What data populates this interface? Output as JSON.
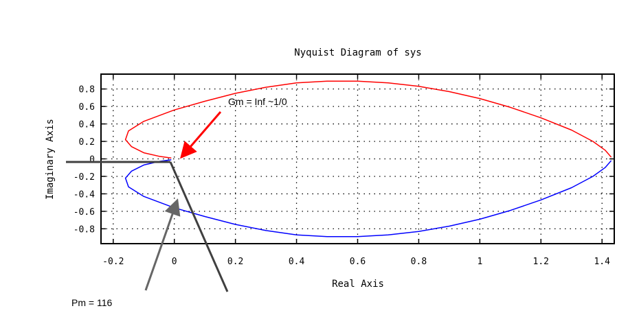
{
  "chart_data": {
    "type": "line",
    "title": "Nyquist Diagram of sys",
    "xlabel": "Real Axis",
    "ylabel": "Imaginary Axis",
    "xlim": [
      -0.24,
      1.44
    ],
    "ylim": [
      -0.97,
      0.97
    ],
    "grid": true,
    "x_ticks": [
      {
        "value": -0.2,
        "label": "-0.2"
      },
      {
        "value": 0,
        "label": "0"
      },
      {
        "value": 0.2,
        "label": "0.2"
      },
      {
        "value": 0.4,
        "label": "0.4"
      },
      {
        "value": 0.6,
        "label": "0.6"
      },
      {
        "value": 0.8,
        "label": "0.8"
      },
      {
        "value": 1.0,
        "label": "1"
      },
      {
        "value": 1.2,
        "label": "1.2"
      },
      {
        "value": 1.4,
        "label": "1.4"
      }
    ],
    "y_ticks": [
      {
        "value": 0.8,
        "label": "0.8"
      },
      {
        "value": 0.6,
        "label": "0.6"
      },
      {
        "value": 0.4,
        "label": "0.4"
      },
      {
        "value": 0.2,
        "label": "0.2"
      },
      {
        "value": 0,
        "label": "0"
      },
      {
        "value": -0.2,
        "label": "-0.2"
      },
      {
        "value": -0.4,
        "label": "-0.4"
      },
      {
        "value": -0.6,
        "label": "-0.6"
      },
      {
        "value": -0.8,
        "label": "-0.8"
      }
    ],
    "series": [
      {
        "color": "#ff0000",
        "points": [
          [
            -0.01,
            0.01
          ],
          [
            -0.05,
            0.03
          ],
          [
            -0.1,
            0.07
          ],
          [
            -0.14,
            0.14
          ],
          [
            -0.16,
            0.22
          ],
          [
            -0.15,
            0.32
          ],
          [
            -0.1,
            0.43
          ],
          [
            0.0,
            0.56
          ],
          [
            0.1,
            0.66
          ],
          [
            0.2,
            0.75
          ],
          [
            0.3,
            0.82
          ],
          [
            0.4,
            0.87
          ],
          [
            0.5,
            0.89
          ],
          [
            0.6,
            0.89
          ],
          [
            0.7,
            0.87
          ],
          [
            0.8,
            0.83
          ],
          [
            0.9,
            0.77
          ],
          [
            1.0,
            0.69
          ],
          [
            1.1,
            0.59
          ],
          [
            1.2,
            0.47
          ],
          [
            1.3,
            0.33
          ],
          [
            1.37,
            0.2
          ],
          [
            1.41,
            0.1
          ],
          [
            1.43,
            0.02
          ]
        ]
      },
      {
        "color": "#0000ff",
        "points": [
          [
            -0.01,
            -0.01
          ],
          [
            -0.05,
            -0.03
          ],
          [
            -0.1,
            -0.07
          ],
          [
            -0.14,
            -0.14
          ],
          [
            -0.16,
            -0.22
          ],
          [
            -0.15,
            -0.32
          ],
          [
            -0.1,
            -0.43
          ],
          [
            0.0,
            -0.56
          ],
          [
            0.1,
            -0.66
          ],
          [
            0.2,
            -0.75
          ],
          [
            0.3,
            -0.82
          ],
          [
            0.4,
            -0.87
          ],
          [
            0.5,
            -0.89
          ],
          [
            0.6,
            -0.89
          ],
          [
            0.7,
            -0.87
          ],
          [
            0.8,
            -0.83
          ],
          [
            0.9,
            -0.77
          ],
          [
            1.0,
            -0.69
          ],
          [
            1.1,
            -0.59
          ],
          [
            1.2,
            -0.47
          ],
          [
            1.3,
            -0.33
          ],
          [
            1.37,
            -0.2
          ],
          [
            1.41,
            -0.1
          ],
          [
            1.43,
            -0.02
          ]
        ]
      }
    ],
    "annotations": [
      {
        "text": "Gm = Inf ~1/0",
        "color": "#000000",
        "arrow_color": "#ff0000"
      },
      {
        "text": "Pm = 116",
        "color": "#000000",
        "arrow_color": "#666666"
      }
    ],
    "overlay_lines_color": "#404040"
  }
}
